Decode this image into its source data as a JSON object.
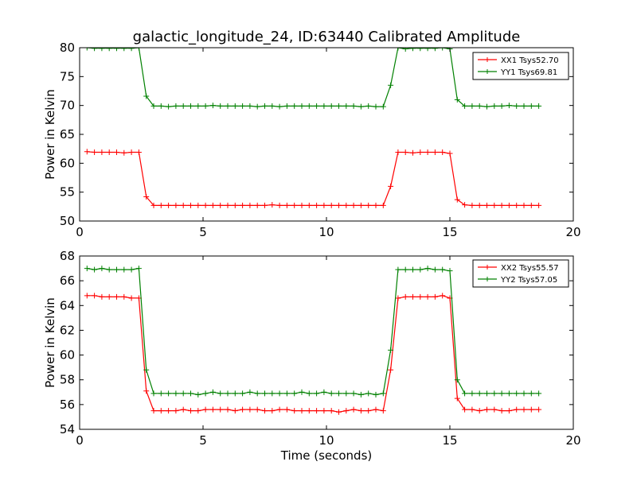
{
  "figure": {
    "title": "galactic_longitude_24, ID:63440 Calibrated Amplitude"
  },
  "chart_data": [
    {
      "type": "line",
      "title": "galactic_longitude_24, ID:63440 Calibrated Amplitude",
      "xlabel": "",
      "ylabel": "Power in Kelvin",
      "xlim": [
        0,
        20
      ],
      "ylim": [
        50,
        80
      ],
      "xticks": [
        "0",
        "5",
        "10",
        "15",
        "20"
      ],
      "yticks": [
        "50",
        "55",
        "60",
        "65",
        "70",
        "75",
        "80"
      ],
      "grid": false,
      "legend_position": "top-right",
      "x": [
        0.3,
        0.6,
        0.9,
        1.2,
        1.5,
        1.8,
        2.1,
        2.4,
        2.7,
        3.0,
        3.3,
        3.6,
        3.9,
        4.2,
        4.5,
        4.8,
        5.1,
        5.4,
        5.7,
        6.0,
        6.3,
        6.6,
        6.9,
        7.2,
        7.5,
        7.8,
        8.1,
        8.4,
        8.7,
        9.0,
        9.3,
        9.6,
        9.9,
        10.2,
        10.5,
        10.8,
        11.1,
        11.4,
        11.7,
        12.0,
        12.3,
        12.6,
        12.9,
        13.2,
        13.5,
        13.8,
        14.1,
        14.4,
        14.7,
        15.0,
        15.3,
        15.6,
        15.9,
        16.2,
        16.5,
        16.8,
        17.1,
        17.4,
        17.7,
        18.0,
        18.3,
        18.6
      ],
      "series": [
        {
          "name": "XX1 Tsys52.70",
          "color": "#ff0000",
          "values": [
            62.0,
            61.9,
            61.9,
            61.9,
            61.9,
            61.8,
            61.9,
            61.9,
            54.2,
            52.7,
            52.7,
            52.7,
            52.7,
            52.7,
            52.7,
            52.7,
            52.7,
            52.7,
            52.7,
            52.7,
            52.7,
            52.7,
            52.7,
            52.7,
            52.7,
            52.8,
            52.7,
            52.7,
            52.7,
            52.7,
            52.7,
            52.7,
            52.7,
            52.7,
            52.7,
            52.7,
            52.7,
            52.7,
            52.7,
            52.7,
            52.7,
            56.0,
            61.9,
            61.9,
            61.8,
            61.9,
            61.9,
            61.9,
            61.9,
            61.7,
            53.7,
            52.8,
            52.7,
            52.7,
            52.7,
            52.7,
            52.7,
            52.7,
            52.7,
            52.7,
            52.7,
            52.7
          ]
        },
        {
          "name": "YY1 Tsys69.81",
          "color": "#008000",
          "values": [
            80.0,
            79.9,
            79.9,
            79.9,
            79.9,
            79.9,
            79.9,
            80.0,
            71.6,
            69.9,
            69.9,
            69.8,
            69.9,
            69.9,
            69.9,
            69.9,
            69.9,
            70.0,
            69.9,
            69.9,
            69.9,
            69.9,
            69.9,
            69.8,
            69.9,
            69.9,
            69.8,
            69.9,
            69.9,
            69.9,
            69.9,
            69.9,
            69.9,
            69.9,
            69.9,
            69.9,
            69.9,
            69.8,
            69.9,
            69.8,
            69.8,
            73.5,
            80.0,
            79.8,
            79.9,
            79.9,
            79.9,
            79.9,
            80.0,
            79.8,
            71.0,
            69.9,
            69.9,
            69.9,
            69.8,
            69.9,
            69.9,
            70.0,
            69.9,
            69.9,
            69.9,
            69.9
          ]
        }
      ]
    },
    {
      "type": "line",
      "title": "",
      "xlabel": "Time (seconds)",
      "ylabel": "Power in Kelvin",
      "xlim": [
        0,
        20
      ],
      "ylim": [
        54,
        68
      ],
      "xticks": [
        "0",
        "5",
        "10",
        "15",
        "20"
      ],
      "yticks": [
        "54",
        "56",
        "58",
        "60",
        "62",
        "64",
        "66",
        "68"
      ],
      "grid": false,
      "legend_position": "top-right",
      "x": [
        0.3,
        0.6,
        0.9,
        1.2,
        1.5,
        1.8,
        2.1,
        2.4,
        2.7,
        3.0,
        3.3,
        3.6,
        3.9,
        4.2,
        4.5,
        4.8,
        5.1,
        5.4,
        5.7,
        6.0,
        6.3,
        6.6,
        6.9,
        7.2,
        7.5,
        7.8,
        8.1,
        8.4,
        8.7,
        9.0,
        9.3,
        9.6,
        9.9,
        10.2,
        10.5,
        10.8,
        11.1,
        11.4,
        11.7,
        12.0,
        12.3,
        12.6,
        12.9,
        13.2,
        13.5,
        13.8,
        14.1,
        14.4,
        14.7,
        15.0,
        15.3,
        15.6,
        15.9,
        16.2,
        16.5,
        16.8,
        17.1,
        17.4,
        17.7,
        18.0,
        18.3,
        18.6
      ],
      "series": [
        {
          "name": "XX2 Tsys55.57",
          "color": "#ff0000",
          "values": [
            64.8,
            64.8,
            64.7,
            64.7,
            64.7,
            64.7,
            64.6,
            64.6,
            57.1,
            55.5,
            55.5,
            55.5,
            55.5,
            55.6,
            55.5,
            55.5,
            55.6,
            55.6,
            55.6,
            55.6,
            55.5,
            55.6,
            55.6,
            55.6,
            55.5,
            55.5,
            55.6,
            55.6,
            55.5,
            55.5,
            55.5,
            55.5,
            55.5,
            55.5,
            55.4,
            55.5,
            55.6,
            55.5,
            55.5,
            55.6,
            55.5,
            58.8,
            64.6,
            64.7,
            64.7,
            64.7,
            64.7,
            64.7,
            64.8,
            64.6,
            56.5,
            55.6,
            55.6,
            55.5,
            55.6,
            55.6,
            55.5,
            55.5,
            55.6,
            55.6,
            55.6,
            55.6
          ]
        },
        {
          "name": "YY2 Tsys57.05",
          "color": "#008000",
          "values": [
            67.0,
            66.9,
            67.0,
            66.9,
            66.9,
            66.9,
            66.9,
            67.0,
            58.8,
            56.9,
            56.9,
            56.9,
            56.9,
            56.9,
            56.9,
            56.8,
            56.9,
            57.0,
            56.9,
            56.9,
            56.9,
            56.9,
            57.0,
            56.9,
            56.9,
            56.9,
            56.9,
            56.9,
            56.9,
            57.0,
            56.9,
            56.9,
            57.0,
            56.9,
            56.9,
            56.9,
            56.9,
            56.8,
            56.9,
            56.8,
            56.9,
            60.4,
            66.9,
            66.9,
            66.9,
            66.9,
            67.0,
            66.9,
            66.9,
            66.8,
            58.0,
            56.9,
            56.9,
            56.9,
            56.9,
            56.9,
            56.9,
            56.9,
            56.9,
            56.9,
            56.9,
            56.9
          ]
        }
      ]
    }
  ]
}
